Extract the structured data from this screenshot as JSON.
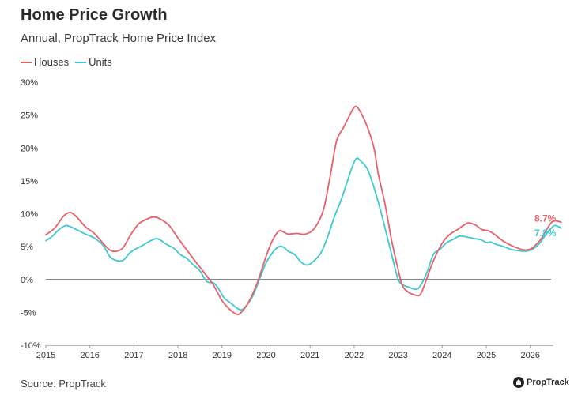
{
  "header": {
    "title": "Home Price Growth",
    "subtitle": "Annual, PropTrack Home Price Index"
  },
  "footer": {
    "source": "Source: PropTrack",
    "brand": "PropTrack",
    "brand_icon": "proptrack-logo-icon"
  },
  "chart_data": {
    "type": "line",
    "title": "Home Price Growth",
    "subtitle": "Annual, PropTrack Home Price Index",
    "xlabel": "",
    "ylabel": "",
    "xlim": [
      2015,
      2026.4
    ],
    "ylim": [
      -10,
      30
    ],
    "x_ticks": [
      2015,
      2016,
      2017,
      2018,
      2019,
      2020,
      2021,
      2022,
      2023,
      2024,
      2025,
      2026
    ],
    "y_ticks": [
      -10,
      -5,
      0,
      5,
      10,
      15,
      20,
      25,
      30
    ],
    "y_tick_labels": [
      "-10%",
      "-5%",
      "0%",
      "5%",
      "10%",
      "15%",
      "20%",
      "25%",
      "30%"
    ],
    "zero_line": true,
    "grid": false,
    "legend_position": "top-left",
    "series": [
      {
        "name": "Houses",
        "color": "#e8606a",
        "end_label": "8.7%",
        "points": [
          [
            2015.0,
            6.8
          ],
          [
            2015.2,
            7.8
          ],
          [
            2015.4,
            9.6
          ],
          [
            2015.55,
            10.2
          ],
          [
            2015.7,
            9.5
          ],
          [
            2015.9,
            8.0
          ],
          [
            2016.1,
            7.0
          ],
          [
            2016.3,
            5.5
          ],
          [
            2016.45,
            4.5
          ],
          [
            2016.6,
            4.3
          ],
          [
            2016.75,
            4.8
          ],
          [
            2016.9,
            6.5
          ],
          [
            2017.1,
            8.4
          ],
          [
            2017.3,
            9.2
          ],
          [
            2017.45,
            9.5
          ],
          [
            2017.6,
            9.2
          ],
          [
            2017.8,
            8.2
          ],
          [
            2018.0,
            6.3
          ],
          [
            2018.2,
            4.5
          ],
          [
            2018.4,
            2.7
          ],
          [
            2018.6,
            1.0
          ],
          [
            2018.8,
            -0.8
          ],
          [
            2019.0,
            -3.2
          ],
          [
            2019.2,
            -4.7
          ],
          [
            2019.35,
            -5.3
          ],
          [
            2019.45,
            -4.9
          ],
          [
            2019.6,
            -3.5
          ],
          [
            2019.8,
            -0.5
          ],
          [
            2020.0,
            3.5
          ],
          [
            2020.15,
            6.0
          ],
          [
            2020.3,
            7.4
          ],
          [
            2020.4,
            7.2
          ],
          [
            2020.5,
            6.9
          ],
          [
            2020.7,
            7.0
          ],
          [
            2020.9,
            6.9
          ],
          [
            2021.1,
            7.8
          ],
          [
            2021.3,
            10.5
          ],
          [
            2021.45,
            15.5
          ],
          [
            2021.6,
            21.0
          ],
          [
            2021.75,
            23.0
          ],
          [
            2021.9,
            25.0
          ],
          [
            2021.98,
            26.0
          ],
          [
            2022.05,
            26.3
          ],
          [
            2022.15,
            25.4
          ],
          [
            2022.3,
            23.2
          ],
          [
            2022.45,
            20.0
          ],
          [
            2022.55,
            16.0
          ],
          [
            2022.7,
            11.5
          ],
          [
            2022.85,
            6.0
          ],
          [
            2023.0,
            1.5
          ],
          [
            2023.1,
            -1.0
          ],
          [
            2023.25,
            -2.0
          ],
          [
            2023.4,
            -2.4
          ],
          [
            2023.5,
            -2.3
          ],
          [
            2023.6,
            -0.8
          ],
          [
            2023.75,
            2.0
          ],
          [
            2023.9,
            4.3
          ],
          [
            2024.05,
            6.0
          ],
          [
            2024.2,
            7.0
          ],
          [
            2024.35,
            7.6
          ],
          [
            2024.5,
            8.3
          ],
          [
            2024.6,
            8.6
          ],
          [
            2024.75,
            8.3
          ],
          [
            2024.9,
            7.6
          ],
          [
            2025.05,
            7.4
          ],
          [
            2025.2,
            6.8
          ],
          [
            2025.35,
            6.0
          ],
          [
            2025.5,
            5.4
          ],
          [
            2025.7,
            4.8
          ],
          [
            2025.85,
            4.5
          ],
          [
            2026.0,
            4.6
          ],
          [
            2026.1,
            5.1
          ],
          [
            2026.25,
            6.2
          ],
          [
            2026.4,
            7.9
          ],
          [
            2026.5,
            8.8
          ],
          [
            2026.6,
            8.9
          ],
          [
            2026.7,
            8.7
          ]
        ]
      },
      {
        "name": "Units",
        "color": "#3ec9d0",
        "end_label": "7.8%",
        "points": [
          [
            2015.0,
            5.9
          ],
          [
            2015.15,
            6.6
          ],
          [
            2015.3,
            7.6
          ],
          [
            2015.45,
            8.2
          ],
          [
            2015.6,
            7.9
          ],
          [
            2015.75,
            7.4
          ],
          [
            2015.9,
            6.9
          ],
          [
            2016.1,
            6.3
          ],
          [
            2016.3,
            5.2
          ],
          [
            2016.45,
            3.5
          ],
          [
            2016.6,
            2.9
          ],
          [
            2016.75,
            2.9
          ],
          [
            2016.9,
            4.0
          ],
          [
            2017.0,
            4.5
          ],
          [
            2017.2,
            5.2
          ],
          [
            2017.35,
            5.8
          ],
          [
            2017.5,
            6.2
          ],
          [
            2017.6,
            6.0
          ],
          [
            2017.75,
            5.3
          ],
          [
            2017.9,
            4.8
          ],
          [
            2018.05,
            3.8
          ],
          [
            2018.2,
            3.2
          ],
          [
            2018.35,
            2.2
          ],
          [
            2018.5,
            1.3
          ],
          [
            2018.65,
            -0.3
          ],
          [
            2018.8,
            -0.5
          ],
          [
            2018.9,
            -1.2
          ],
          [
            2019.05,
            -2.8
          ],
          [
            2019.2,
            -3.6
          ],
          [
            2019.35,
            -4.4
          ],
          [
            2019.45,
            -4.6
          ],
          [
            2019.55,
            -4.0
          ],
          [
            2019.7,
            -2.5
          ],
          [
            2019.85,
            0.0
          ],
          [
            2020.0,
            2.5
          ],
          [
            2020.15,
            4.1
          ],
          [
            2020.3,
            5.0
          ],
          [
            2020.4,
            4.9
          ],
          [
            2020.5,
            4.3
          ],
          [
            2020.65,
            3.8
          ],
          [
            2020.8,
            2.6
          ],
          [
            2020.95,
            2.2
          ],
          [
            2021.1,
            2.9
          ],
          [
            2021.25,
            4.1
          ],
          [
            2021.4,
            6.5
          ],
          [
            2021.55,
            9.5
          ],
          [
            2021.7,
            12.0
          ],
          [
            2021.85,
            15.0
          ],
          [
            2021.95,
            17.0
          ],
          [
            2022.05,
            18.4
          ],
          [
            2022.15,
            18.0
          ],
          [
            2022.3,
            16.8
          ],
          [
            2022.45,
            14.0
          ],
          [
            2022.6,
            10.5
          ],
          [
            2022.75,
            6.5
          ],
          [
            2022.9,
            2.5
          ],
          [
            2023.0,
            0.0
          ],
          [
            2023.1,
            -0.8
          ],
          [
            2023.25,
            -1.2
          ],
          [
            2023.4,
            -1.5
          ],
          [
            2023.5,
            -1.0
          ],
          [
            2023.65,
            1.0
          ],
          [
            2023.8,
            3.8
          ],
          [
            2023.95,
            4.6
          ],
          [
            2024.1,
            5.6
          ],
          [
            2024.25,
            6.1
          ],
          [
            2024.4,
            6.6
          ],
          [
            2024.6,
            6.4
          ],
          [
            2024.75,
            6.2
          ],
          [
            2024.9,
            6.0
          ],
          [
            2025.0,
            5.6
          ],
          [
            2025.1,
            5.7
          ],
          [
            2025.2,
            5.4
          ],
          [
            2025.4,
            5.0
          ],
          [
            2025.55,
            4.6
          ],
          [
            2025.7,
            4.4
          ],
          [
            2025.9,
            4.3
          ],
          [
            2026.05,
            4.6
          ],
          [
            2026.2,
            5.4
          ],
          [
            2026.35,
            6.8
          ],
          [
            2026.45,
            7.6
          ],
          [
            2026.55,
            8.2
          ],
          [
            2026.65,
            8.0
          ],
          [
            2026.7,
            7.8
          ]
        ]
      }
    ]
  }
}
